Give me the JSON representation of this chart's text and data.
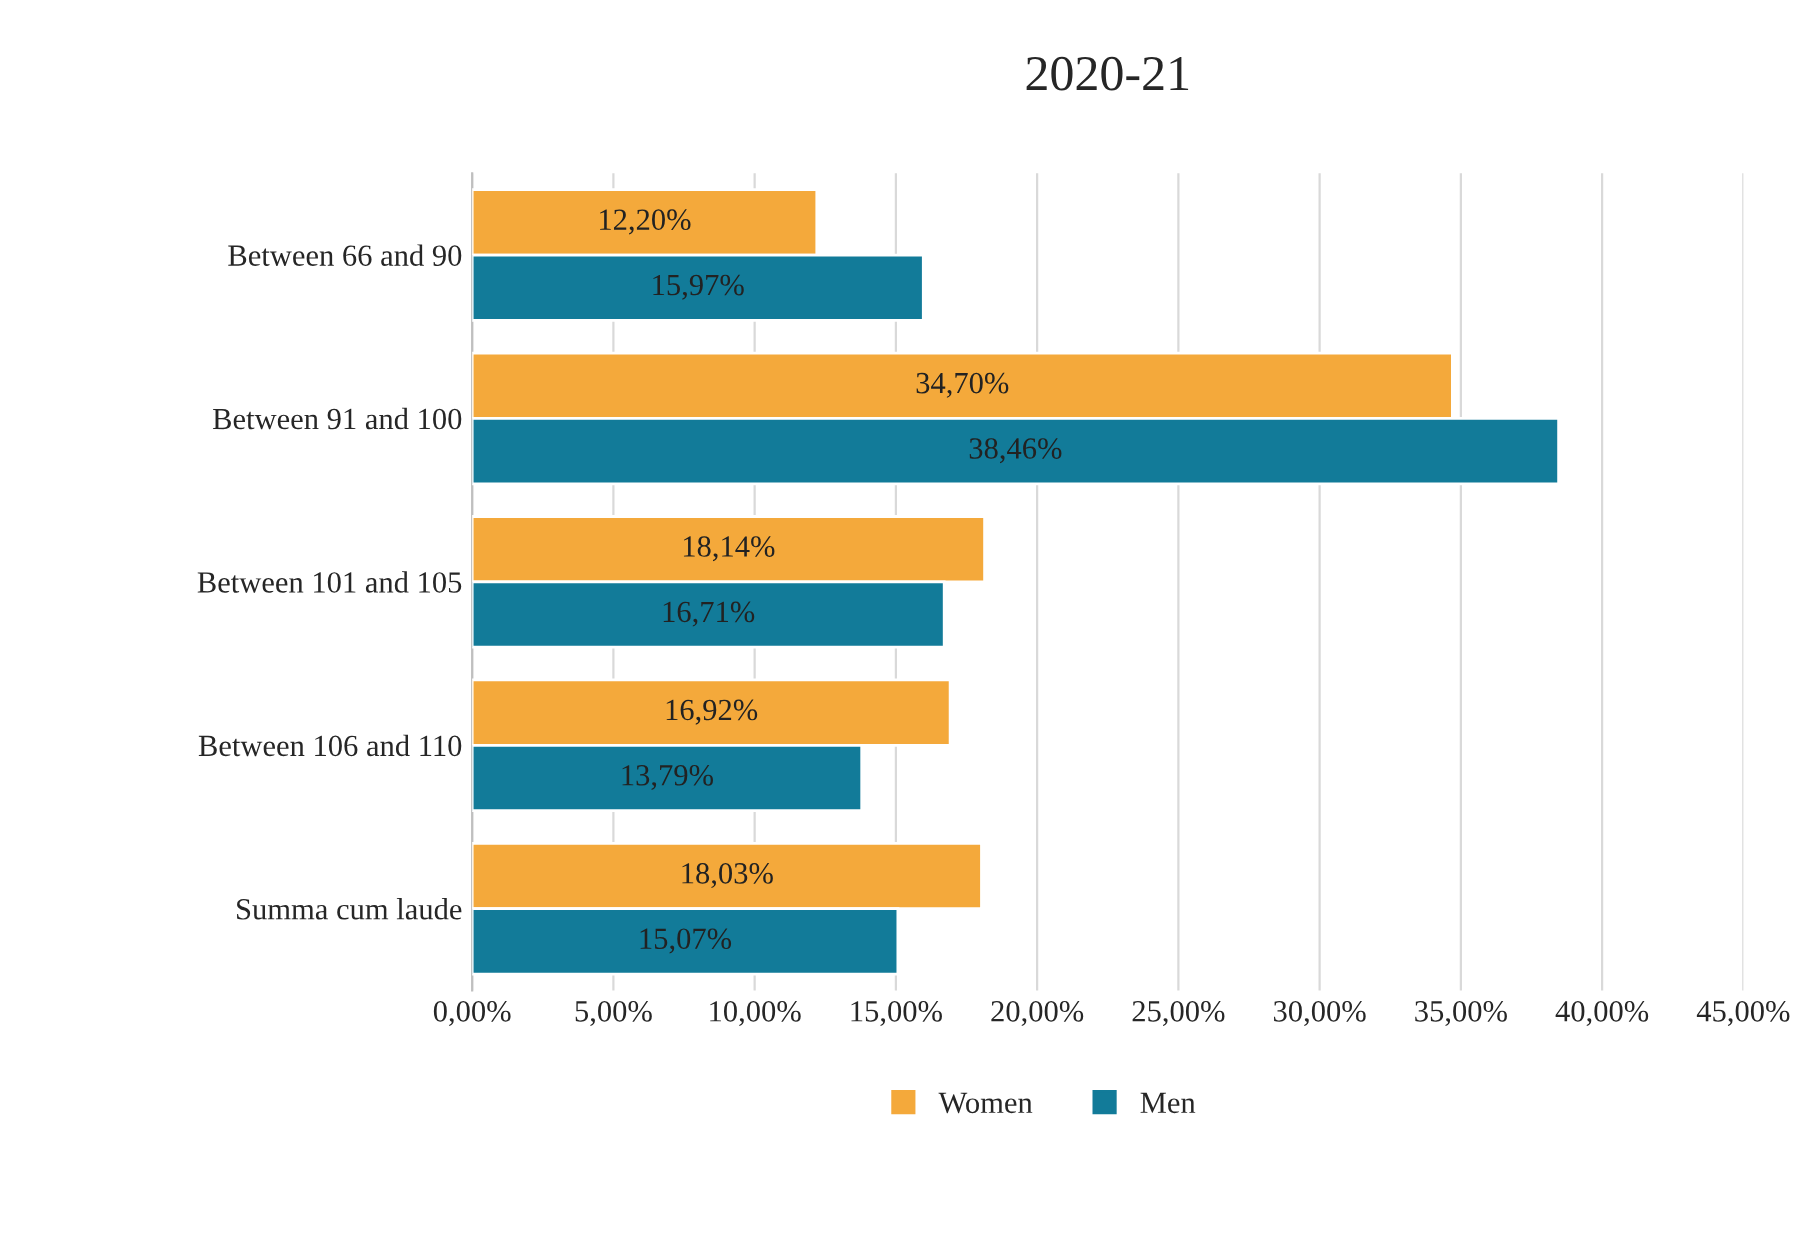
{
  "chart_data": {
    "type": "bar",
    "orientation": "horizontal",
    "title": "2020-21",
    "categories": [
      "Between 66 and 90",
      "Between 91 and 100",
      "Between 101 and 105",
      "Between 106 and 110",
      "Summa cum laude"
    ],
    "series": [
      {
        "name": "Women",
        "color": "#f4a93b",
        "values": [
          12.2,
          34.7,
          18.14,
          16.92,
          18.03
        ],
        "value_labels": [
          "12,20%",
          "34,70%",
          "18,14%",
          "16,92%",
          "18,03%"
        ]
      },
      {
        "name": "Men",
        "color": "#127b99",
        "values": [
          15.97,
          38.46,
          16.71,
          13.79,
          15.07
        ],
        "value_labels": [
          "15,97%",
          "38,46%",
          "16,71%",
          "13,79%",
          "15,07%"
        ]
      }
    ],
    "xlim": [
      0,
      45
    ],
    "xticks": [
      {
        "value": 0,
        "label": "0,00%"
      },
      {
        "value": 5,
        "label": "5,00%"
      },
      {
        "value": 10,
        "label": "10,00%"
      },
      {
        "value": 15,
        "label": "15,00%"
      },
      {
        "value": 20,
        "label": "20,00%"
      },
      {
        "value": 25,
        "label": "25,00%"
      },
      {
        "value": 30,
        "label": "30,00%"
      },
      {
        "value": 35,
        "label": "35,00%"
      },
      {
        "value": 40,
        "label": "40,00%"
      },
      {
        "value": 45,
        "label": "45,00%"
      }
    ],
    "grid": "x",
    "legend": "bottom"
  }
}
